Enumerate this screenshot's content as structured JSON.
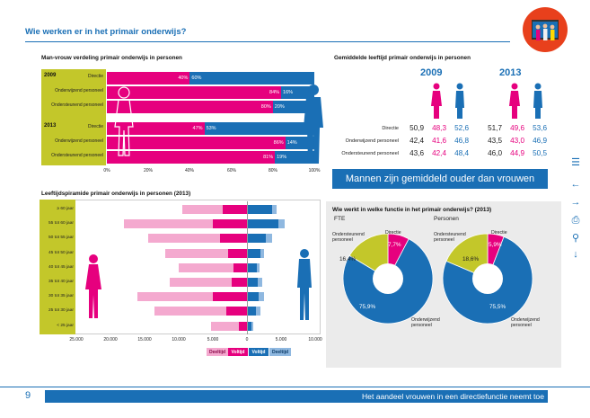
{
  "page_title": "Wie werken er in het primair onderwijs?",
  "genders": {
    "title": "Man-vrouw verdeling primair onderwijs in personen",
    "groups": [
      {
        "year": "2009",
        "rows": [
          {
            "label": "Directie",
            "female": 40,
            "male": 60,
            "female_label": "40%",
            "male_label": "60%"
          },
          {
            "label": "Onderwijzend personeel",
            "female": 84,
            "male": 16,
            "female_label": "84%",
            "male_label": "16%"
          },
          {
            "label": "Ondersteunend personeel",
            "female": 80,
            "male": 20,
            "female_label": "80%",
            "male_label": "20%"
          }
        ]
      },
      {
        "year": "2013",
        "rows": [
          {
            "label": "Directie",
            "female": 47,
            "male": 53,
            "female_label": "47%",
            "male_label": "53%"
          },
          {
            "label": "Onderwijzend personeel",
            "female": 86,
            "male": 14,
            "female_label": "86%",
            "male_label": "14%"
          },
          {
            "label": "Ondersteunend personeel",
            "female": 81,
            "male": 19,
            "female_label": "81%",
            "male_label": "19%"
          }
        ]
      }
    ],
    "axis": [
      "0%",
      "20%",
      "40%",
      "60%",
      "80%",
      "100%"
    ]
  },
  "age": {
    "title": "Gemiddelde leeftijd primair onderwijs in personen",
    "years": [
      "2009",
      "2013"
    ],
    "rows": [
      {
        "label": "Directie",
        "v2009": [
          "50,9",
          "48,3",
          "52,6"
        ],
        "v2013": [
          "51,7",
          "49,6",
          "53,6"
        ]
      },
      {
        "label": "Onderwijzend personeel",
        "v2009": [
          "42,4",
          "41,6",
          "46,8"
        ],
        "v2013": [
          "43,5",
          "43,0",
          "46,9"
        ]
      },
      {
        "label": "Ondersteunend personeel",
        "v2009": [
          "43,6",
          "42,4",
          "48,4"
        ],
        "v2013": [
          "46,0",
          "44,9",
          "50,5"
        ]
      }
    ]
  },
  "banner": "Mannen zijn gemiddeld ouder dan vrouwen",
  "pyramid": {
    "title": "Leeftijdspiramide primair onderwijs in personen (2013)",
    "ages": [
      "≥ 60 jaar",
      "55 tot 60 jaar",
      "50 tot 55 jaar",
      "45 tot 50 jaar",
      "40 tot 45 jaar",
      "35 tot 40 jaar",
      "30 tot 35 jaar",
      "25 tot 30 jaar",
      "< 25 jaar"
    ],
    "x_ticks": [
      "25.000",
      "20.000",
      "15.000",
      "10.000",
      "5.000",
      "0",
      "5.000",
      "10.000"
    ],
    "legend": [
      "Deeltijd",
      "Voltijd",
      "Voltijd",
      "Deeltijd"
    ]
  },
  "pies": {
    "title": "Wie werkt in welke functie in het primair onderwijs? (2013)",
    "charts": [
      {
        "name": "FTE",
        "directie": "7,7%",
        "ondersteunend": "16,4%",
        "onderwijzend": "75,9%"
      },
      {
        "name": "Personen",
        "directie": "5,9%",
        "ondersteunend": "18,6%",
        "onderwijzend": "75,5%"
      }
    ],
    "labels": {
      "directie": "Directie",
      "ondersteunend": "Ondersteunend personeel",
      "onderwijzend": "Onderwijzend personeel"
    }
  },
  "footer": {
    "page": "9",
    "text": "Het aandeel vrouwen in een directiefunctie neemt toe"
  },
  "colors": {
    "pink": "#e6007e",
    "blue": "#1a6fb5",
    "olive": "#c3c72a"
  },
  "chart_data": [
    {
      "type": "bar",
      "title": "Man-vrouw verdeling primair onderwijs in personen",
      "categories": [
        "2009 Directie",
        "2009 Onderwijzend personeel",
        "2009 Ondersteunend personeel",
        "2013 Directie",
        "2013 Onderwijzend personeel",
        "2013 Ondersteunend personeel"
      ],
      "series": [
        {
          "values": [
            40,
            84,
            80,
            47,
            86,
            81
          ]
        },
        {
          "values": [
            60,
            16,
            20,
            53,
            14,
            19
          ]
        }
      ],
      "ylim": [
        0,
        100
      ]
    },
    {
      "type": "bar",
      "title": "Leeftijdspiramide primair onderwijs in personen (2013)",
      "categories": [
        "≥ 60 jaar",
        "55 tot 60 jaar",
        "50 tot 55 jaar",
        "45 tot 50 jaar",
        "40 tot 45 jaar",
        "35 tot 40 jaar",
        "30 tot 35 jaar",
        "25 tot 30 jaar",
        "< 25 jaar"
      ],
      "series": [
        {
          "name": "Deeltijd",
          "values": [
            -6000,
            -13000,
            -10500,
            -9300,
            -8000,
            -9000,
            -11000,
            -10500,
            -4000
          ]
        },
        {
          "name": "Voltijd",
          "values": [
            -3500,
            -5000,
            -4000,
            -2700,
            -2000,
            -2300,
            -5000,
            -3000,
            -1200
          ]
        },
        {
          "name": "Voltijd",
          "values": [
            3700,
            4600,
            2800,
            2000,
            1500,
            1600,
            1700,
            1300,
            700
          ]
        },
        {
          "name": "Deeltijd",
          "values": [
            600,
            900,
            900,
            500,
            400,
            600,
            800,
            700,
            200
          ]
        }
      ],
      "xlim": [
        -25000,
        10000
      ]
    },
    {
      "type": "pie",
      "title": "FTE",
      "categories": [
        "Directie",
        "Ondersteunend personeel",
        "Onderwijzend personeel"
      ],
      "values": [
        7.7,
        16.4,
        75.9
      ]
    },
    {
      "type": "pie",
      "title": "Personen",
      "categories": [
        "Directie",
        "Ondersteunend personeel",
        "Onderwijzend personeel"
      ],
      "values": [
        5.9,
        18.6,
        75.5
      ]
    }
  ]
}
